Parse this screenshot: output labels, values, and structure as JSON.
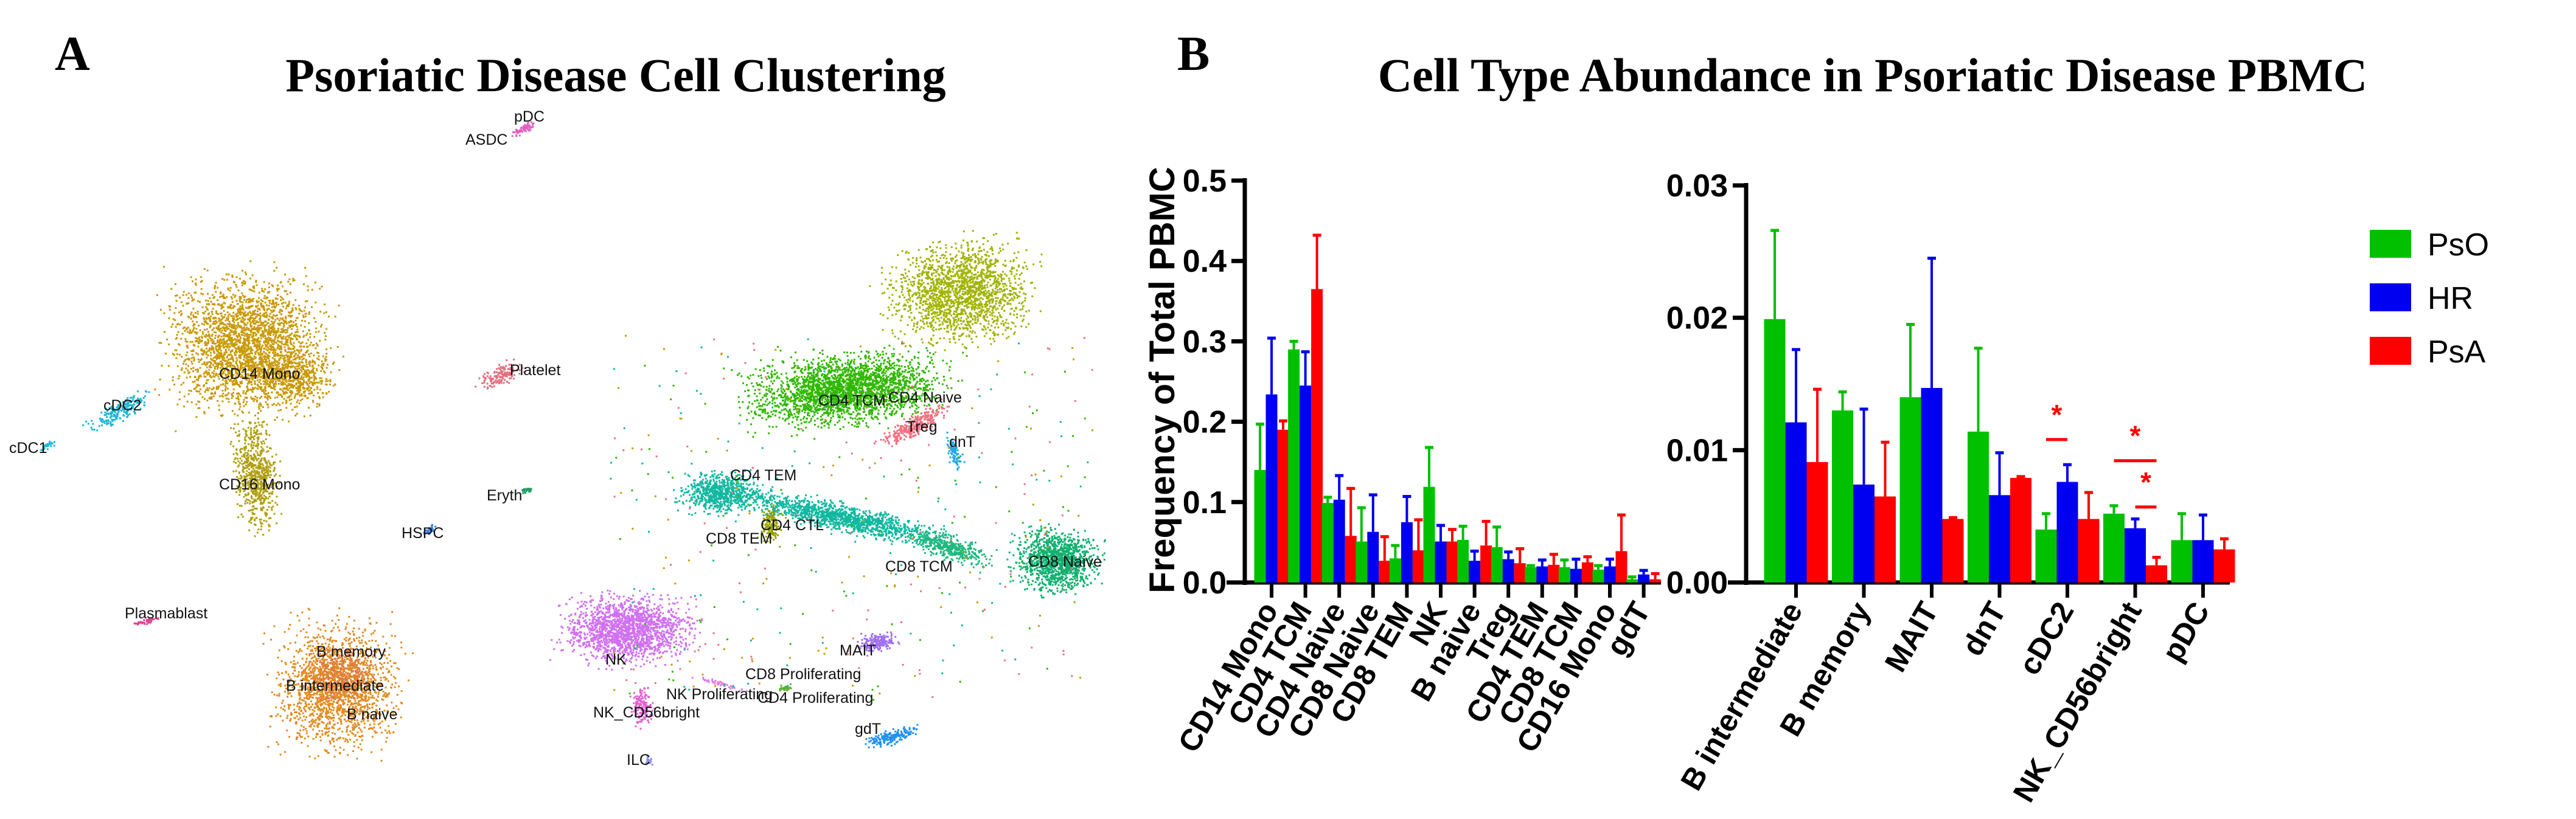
{
  "panel_a": {
    "letter": "A",
    "title": "Psoriatic Disease Cell Clustering",
    "cluster_labels": [
      "pDC",
      "ASDC",
      "CD14 Mono",
      "cDC2",
      "cDC1",
      "CD16 Mono",
      "Platelet",
      "Eryth",
      "HSPC",
      "Plasmablast",
      "B memory",
      "B intermediate",
      "B naive",
      "CD4 TCM",
      "CD4 Naive",
      "Treg",
      "CD4 TEM",
      "CD4 CTL",
      "dnT",
      "CD8 TEM",
      "CD8 TCM",
      "CD8 Naive",
      "NK",
      "MAIT",
      "CD8 Proliferating",
      "NK Proliferating",
      "CD4 Proliferating",
      "NK_CD56bright",
      "gdT",
      "ILC"
    ]
  },
  "panel_b": {
    "letter": "B",
    "title": "Cell Type Abundance in Psoriatic Disease PBMC"
  },
  "chart_data": [
    {
      "type": "bar",
      "ylabel": "Frequency of Total PBMC",
      "ylim": [
        0,
        0.5
      ],
      "yticks": [
        "0.0",
        "0.1",
        "0.2",
        "0.3",
        "0.4",
        "0.5"
      ],
      "categories": [
        "CD14 Mono",
        "CD4 TCM",
        "CD4 Naive",
        "CD8 Naive",
        "CD8 TEM",
        "NK",
        "B naive",
        "Treg",
        "CD4 TEM",
        "CD8 TCM",
        "CD16 Mono",
        "gdT"
      ],
      "series": [
        {
          "name": "PsO",
          "color": "#00C000",
          "values": [
            0.14,
            0.29,
            0.099,
            0.051,
            0.03,
            0.119,
            0.053,
            0.044,
            0.019,
            0.019,
            0.016,
            0.004
          ],
          "error_upper": [
            0.197,
            0.3,
            0.106,
            0.093,
            0.046,
            0.168,
            0.07,
            0.069,
            0.021,
            0.028,
            0.021,
            0.007
          ]
        },
        {
          "name": "HR",
          "color": "#0000F0",
          "values": [
            0.234,
            0.245,
            0.103,
            0.063,
            0.075,
            0.051,
            0.027,
            0.029,
            0.02,
            0.017,
            0.02,
            0.01
          ],
          "error_upper": [
            0.304,
            0.287,
            0.133,
            0.109,
            0.107,
            0.071,
            0.039,
            0.038,
            0.028,
            0.029,
            0.029,
            0.015
          ]
        },
        {
          "name": "PsA",
          "color": "#FF0000",
          "values": [
            0.19,
            0.365,
            0.058,
            0.027,
            0.04,
            0.051,
            0.046,
            0.024,
            0.022,
            0.025,
            0.039,
            0.004
          ],
          "error_upper": [
            0.201,
            0.432,
            0.117,
            0.057,
            0.078,
            0.066,
            0.076,
            0.042,
            0.035,
            0.032,
            0.084,
            0.011
          ]
        }
      ]
    },
    {
      "type": "bar",
      "ylim": [
        0,
        0.03
      ],
      "yticks": [
        "0.00",
        "0.01",
        "0.02",
        "0.03"
      ],
      "categories": [
        "B intermediate",
        "B memory",
        "MAIT",
        "dnT",
        "cDC2",
        "NK_CD56bright",
        "pDC"
      ],
      "series": [
        {
          "name": "PsO",
          "color": "#00C000",
          "values": [
            0.0199,
            0.013,
            0.014,
            0.0114,
            0.004,
            0.0052,
            0.0032
          ],
          "error_upper": [
            0.0266,
            0.0144,
            0.0195,
            0.0177,
            0.0052,
            0.0058,
            0.0052
          ]
        },
        {
          "name": "HR",
          "color": "#0000F0",
          "values": [
            0.0121,
            0.0074,
            0.0147,
            0.0066,
            0.0076,
            0.0041,
            0.0032
          ],
          "error_upper": [
            0.0176,
            0.0131,
            0.0245,
            0.0098,
            0.0089,
            0.0048,
            0.0051
          ]
        },
        {
          "name": "PsA",
          "color": "#FF0000",
          "values": [
            0.0091,
            0.0065,
            0.0048,
            0.0079,
            0.0048,
            0.0013,
            0.0025
          ],
          "error_upper": [
            0.0146,
            0.0106,
            0.0049,
            0.008,
            0.0068,
            0.0019,
            0.0033
          ]
        }
      ],
      "significance": [
        {
          "category": "cDC2",
          "between": [
            "PsO",
            "HR"
          ],
          "label": "*"
        },
        {
          "category": "NK_CD56bright",
          "between": [
            "PsO",
            "PsA"
          ],
          "label": "*"
        },
        {
          "category": "NK_CD56bright",
          "between": [
            "HR",
            "PsA"
          ],
          "label": "*"
        }
      ],
      "legend": {
        "position": "top-right",
        "entries": [
          "PsO",
          "HR",
          "PsA"
        ]
      }
    }
  ]
}
